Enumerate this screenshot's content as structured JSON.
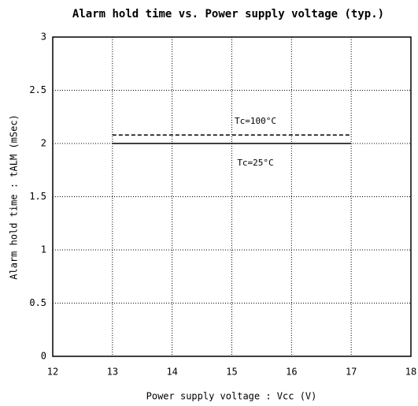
{
  "chart_data": {
    "type": "line",
    "title": "Alarm hold time vs. Power supply voltage (typ.)",
    "x_label": "Power supply voltage : Vcc (V)",
    "y_label": "Alarm hold time : tALM (mSec)",
    "x": [
      13,
      17
    ],
    "series": [
      {
        "name": "Tc=100°C",
        "color": "#000000",
        "line_style": "dashed",
        "values": [
          2.08,
          2.08
        ]
      },
      {
        "name": "Tc=25°C",
        "color": "#000000",
        "line_style": "solid",
        "values": [
          2,
          2
        ]
      }
    ],
    "xlim": [
      12,
      18
    ],
    "xticks": [
      12,
      13,
      14,
      15,
      16,
      17,
      18
    ],
    "ylim": [
      0,
      3
    ],
    "yticks": [
      0,
      0.5,
      1,
      1.5,
      2,
      2.5,
      3
    ],
    "grid": true
  }
}
